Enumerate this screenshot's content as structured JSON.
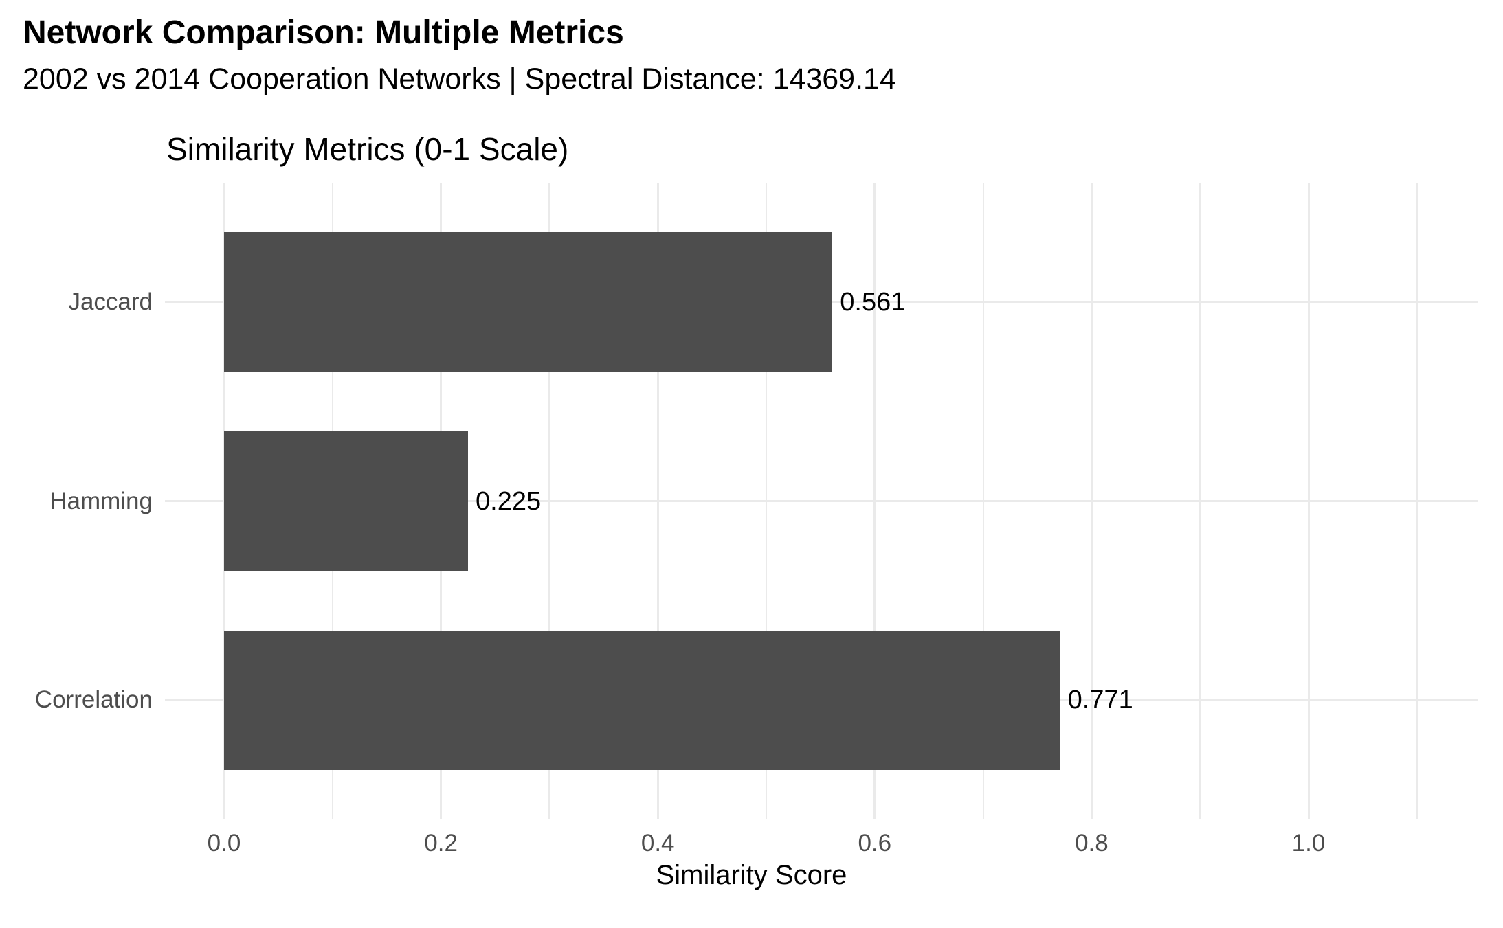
{
  "header": {
    "title": "Network Comparison: Multiple Metrics",
    "subtitle": "2002 vs 2014 Cooperation Networks | Spectral Distance: 14369.14"
  },
  "chart_data": {
    "type": "bar",
    "orientation": "horizontal",
    "title": "Similarity Metrics (0-1 Scale)",
    "categories": [
      "Jaccard",
      "Hamming",
      "Correlation"
    ],
    "values": [
      0.561,
      0.225,
      0.771
    ],
    "value_labels": [
      "0.561",
      "0.225",
      "0.771"
    ],
    "xlabel": "Similarity Score",
    "ylabel": "",
    "xlim": [
      0,
      1.1
    ],
    "x_tick_labels": [
      "0.0",
      "0.2",
      "0.4",
      "0.6",
      "0.8",
      "1.0"
    ],
    "x_tick_values": [
      0,
      0.2,
      0.4,
      0.6,
      0.8,
      1.0
    ],
    "x_minor_tick_values": [
      0.1,
      0.3,
      0.5,
      0.7,
      0.9,
      1.1
    ],
    "grid": true,
    "legend_position": "none",
    "colors": {
      "bar": "#4D4D4D",
      "gridline": "#EAEAEA",
      "axis_text": "#4D4D4D",
      "value_label_text": "#000000",
      "background": "#FFFFFF"
    }
  }
}
